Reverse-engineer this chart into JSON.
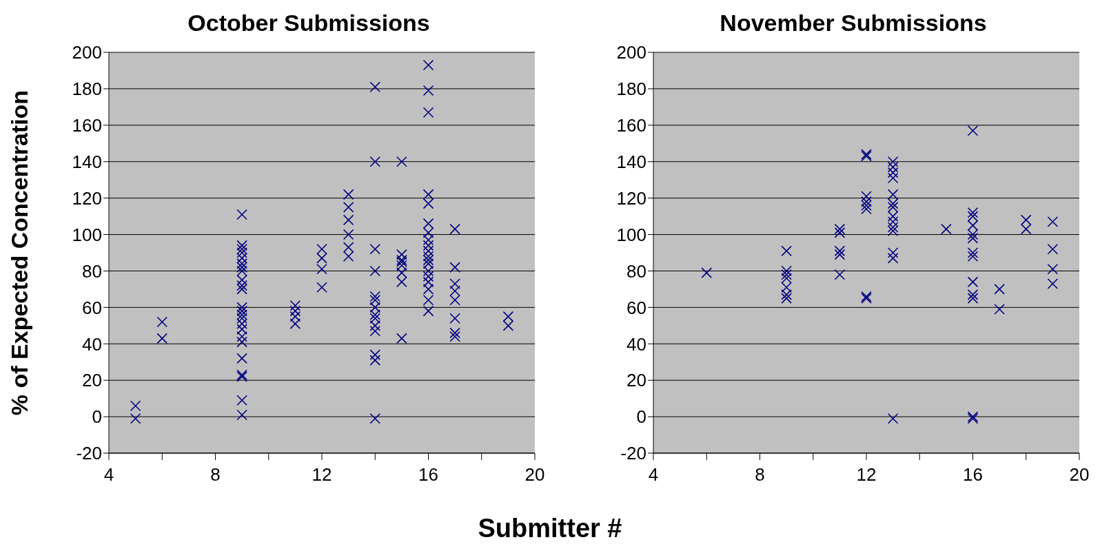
{
  "chart_data": [
    {
      "type": "scatter",
      "title": "October Submissions",
      "ylabel": "% of Expected Concentration",
      "xlabel": "Submitter #",
      "marker": "cross",
      "grid": "y",
      "xlim": [
        4,
        20
      ],
      "ylim": [
        -20,
        200
      ],
      "xticks": [
        4,
        {
          "value": 6,
          "label": null
        },
        8,
        {
          "value": 10,
          "label": null
        },
        12,
        {
          "value": 14,
          "label": null
        },
        16,
        {
          "value": 18,
          "label": null
        },
        20
      ],
      "yticks": [
        -20,
        0,
        20,
        40,
        60,
        80,
        100,
        120,
        140,
        160,
        180,
        200
      ],
      "series": [
        {
          "color": "#000080",
          "x": [
            5,
            5,
            6,
            6,
            9,
            9,
            9,
            9,
            9,
            9,
            9,
            9,
            9,
            9,
            9,
            9,
            9,
            9,
            9,
            9,
            9,
            9,
            9,
            9,
            9,
            9,
            9,
            9,
            11,
            11,
            11,
            11,
            12,
            12,
            12,
            12,
            13,
            13,
            13,
            13,
            13,
            13,
            14,
            14,
            14,
            14,
            14,
            14,
            14,
            14,
            14,
            14,
            14,
            14,
            14,
            14,
            15,
            15,
            15,
            15,
            15,
            15,
            15,
            15,
            16,
            16,
            16,
            16,
            16,
            16,
            16,
            16,
            16,
            16,
            16,
            16,
            16,
            16,
            16,
            16,
            16,
            16,
            16,
            17,
            17,
            17,
            17,
            17,
            17,
            17,
            17,
            19,
            19
          ],
          "values": [
            6,
            -1,
            52,
            43,
            111,
            94,
            92,
            90,
            87,
            84,
            82,
            80,
            75,
            72,
            70,
            60,
            58,
            56,
            54,
            51,
            48,
            44,
            41,
            32,
            23,
            22,
            9,
            1,
            61,
            58,
            55,
            51,
            92,
            87,
            81,
            71,
            122,
            115,
            108,
            100,
            93,
            88,
            181,
            140,
            92,
            80,
            66,
            64,
            60,
            56,
            54,
            50,
            47,
            34,
            31,
            -1,
            140,
            89,
            86,
            85,
            83,
            79,
            74,
            43,
            193,
            179,
            167,
            122,
            117,
            106,
            101,
            97,
            94,
            91,
            88,
            86,
            84,
            80,
            77,
            74,
            70,
            64,
            58,
            103,
            82,
            73,
            69,
            64,
            54,
            46,
            44,
            55,
            50
          ]
        }
      ]
    },
    {
      "type": "scatter",
      "title": "November Submissions",
      "marker": "cross",
      "grid": "y",
      "xlim": [
        4,
        20
      ],
      "ylim": [
        -20,
        200
      ],
      "xticks": [
        4,
        {
          "value": 6,
          "label": null
        },
        8,
        {
          "value": 10,
          "label": null
        },
        12,
        {
          "value": 14,
          "label": null
        },
        16,
        {
          "value": 18,
          "label": null
        },
        20
      ],
      "yticks": [
        -20,
        0,
        20,
        40,
        60,
        80,
        100,
        120,
        140,
        160,
        180,
        200
      ],
      "series": [
        {
          "color": "#000080",
          "x": [
            6,
            9,
            9,
            9,
            9,
            9,
            9,
            9,
            11,
            11,
            11,
            11,
            11,
            12,
            12,
            12,
            12,
            12,
            12,
            12,
            12,
            13,
            13,
            13,
            13,
            13,
            13,
            13,
            13,
            13,
            13,
            13,
            13,
            13,
            13,
            15,
            16,
            16,
            16,
            16,
            16,
            16,
            16,
            16,
            16,
            16,
            16,
            16,
            16,
            17,
            17,
            18,
            18,
            19,
            19,
            19,
            19
          ],
          "values": [
            79,
            91,
            80,
            78,
            76,
            71,
            67,
            65,
            103,
            101,
            91,
            89,
            78,
            144,
            143,
            121,
            118,
            116,
            114,
            66,
            65,
            140,
            137,
            134,
            131,
            122,
            117,
            115,
            110,
            107,
            104,
            102,
            90,
            87,
            -1,
            103,
            157,
            112,
            110,
            105,
            100,
            98,
            90,
            88,
            74,
            67,
            65,
            0,
            -1,
            70,
            59,
            108,
            103,
            107,
            92,
            81,
            73
          ]
        }
      ]
    }
  ]
}
